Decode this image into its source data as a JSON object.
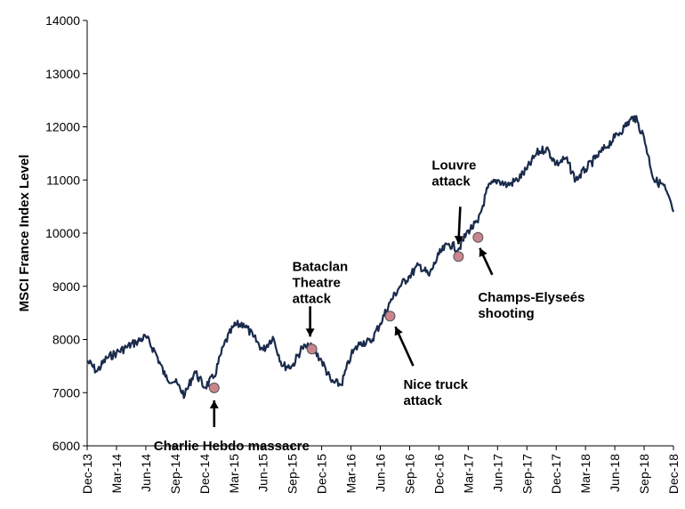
{
  "chart_data": {
    "type": "line",
    "title": "",
    "xlabel": "",
    "ylabel": "MSCI France Index Level",
    "ylim": [
      6000,
      14000
    ],
    "yticks": [
      6000,
      7000,
      8000,
      9000,
      10000,
      11000,
      12000,
      13000,
      14000
    ],
    "xlim": [
      "2013-12",
      "2018-12"
    ],
    "xticks": [
      "Dec-13",
      "Mar-14",
      "Jun-14",
      "Sep-14",
      "Dec-14",
      "Mar-15",
      "Jun-15",
      "Sep-15",
      "Dec-15",
      "Mar-16",
      "Jun-16",
      "Sep-16",
      "Dec-16",
      "Mar-17",
      "Jun-17",
      "Sep-17",
      "Dec-17",
      "Mar-18",
      "Jun-18",
      "Sep-18",
      "Dec-18"
    ],
    "grid": false,
    "line_color": "#1a2b4c",
    "marker_color": "#c9858e",
    "series": [
      {
        "name": "",
        "x": [
          "2013-12",
          "2014-01",
          "2014-02",
          "2014-03",
          "2014-04",
          "2014-05",
          "2014-06",
          "2014-07",
          "2014-08",
          "2014-09",
          "2014-10",
          "2014-11",
          "2014-12",
          "2015-01",
          "2015-02",
          "2015-03",
          "2015-04",
          "2015-05",
          "2015-06",
          "2015-07",
          "2015-08",
          "2015-09",
          "2015-10",
          "2015-11",
          "2015-12",
          "2016-01",
          "2016-02",
          "2016-03",
          "2016-04",
          "2016-05",
          "2016-06",
          "2016-07",
          "2016-08",
          "2016-09",
          "2016-10",
          "2016-11",
          "2016-12",
          "2017-01",
          "2017-02",
          "2017-03",
          "2017-04",
          "2017-05",
          "2017-06",
          "2017-07",
          "2017-08",
          "2017-09",
          "2017-10",
          "2017-11",
          "2017-12",
          "2018-01",
          "2018-02",
          "2018-03",
          "2018-04",
          "2018-05",
          "2018-06",
          "2018-07",
          "2018-08",
          "2018-09",
          "2018-10",
          "2018-11",
          "2018-12"
        ],
        "values": [
          7600,
          7400,
          7650,
          7750,
          7850,
          7950,
          8050,
          7750,
          7300,
          7200,
          6950,
          7400,
          7100,
          7300,
          7900,
          8250,
          8300,
          8050,
          7800,
          8050,
          7500,
          7500,
          7850,
          7850,
          7600,
          7200,
          7150,
          7700,
          7950,
          7950,
          8300,
          8700,
          9000,
          9200,
          9400,
          9200,
          9600,
          9800,
          9700,
          10050,
          10200,
          10850,
          11000,
          10900,
          11000,
          11200,
          11500,
          11600,
          11300,
          11400,
          11000,
          11200,
          11400,
          11600,
          11800,
          12000,
          12200,
          11800,
          11000,
          10900,
          10400
        ]
      }
    ],
    "events": [
      {
        "label_lines": [
          "Charlie Hebdo massacre"
        ],
        "date": "2015-01",
        "value": 7090
      },
      {
        "label_lines": [
          "Bataclan",
          "Theatre",
          "attack"
        ],
        "date": "2015-11",
        "value": 7820
      },
      {
        "label_lines": [
          "Nice truck",
          "attack"
        ],
        "date": "2016-07",
        "value": 8440
      },
      {
        "label_lines": [
          "Louvre",
          "attack"
        ],
        "date": "2017-02",
        "value": 9560
      },
      {
        "label_lines": [
          "Champs-Elyseés",
          "shooting"
        ],
        "date": "2017-04",
        "value": 9920
      }
    ]
  }
}
